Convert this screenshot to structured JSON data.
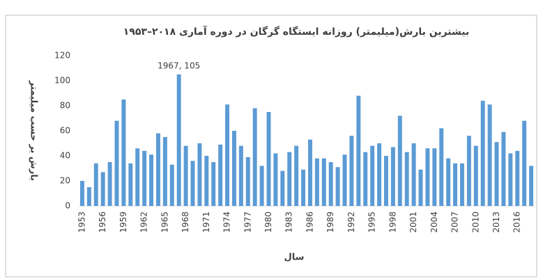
{
  "chart_data": {
    "type": "bar",
    "title": "بیشترین بارش(میلیمتر) روزانه ایستگاه گرگان در دوره آماری ۲۰۱۸–۱۹۵۳",
    "x_label": "سال",
    "y_label": "بارش بر حسب میلیمتر",
    "annotation": "1967, 105",
    "categories": [
      "1953",
      null,
      null,
      "1956",
      null,
      null,
      "1959",
      null,
      null,
      "1962",
      null,
      null,
      "1965",
      null,
      null,
      "1968",
      null,
      null,
      "1971",
      null,
      null,
      "1974",
      null,
      null,
      "1977",
      null,
      null,
      "1980",
      null,
      null,
      "1983",
      null,
      null,
      "1986",
      null,
      null,
      "1989",
      null,
      null,
      "1992",
      null,
      null,
      "1995",
      null,
      null,
      "1998",
      null,
      null,
      "2001",
      null,
      null,
      "2004",
      null,
      null,
      "2007",
      null,
      null,
      "2010",
      null,
      null,
      "2013",
      null,
      null,
      "2016",
      null,
      null
    ],
    "values": [
      20,
      15,
      34,
      27,
      35,
      68,
      85,
      34,
      46,
      44,
      41,
      58,
      55,
      33,
      105,
      48,
      36,
      50,
      40,
      35,
      49,
      81,
      60,
      48,
      39,
      78,
      32,
      75,
      42,
      28,
      43,
      48,
      29,
      53,
      38,
      38,
      35,
      31,
      41,
      56,
      88,
      43,
      48,
      50,
      40,
      47,
      72,
      43,
      50,
      29,
      46,
      46,
      62,
      38,
      34,
      34,
      56,
      48,
      84,
      81,
      51,
      59,
      42,
      44,
      68,
      32
    ],
    "color": "#5b9bd5",
    "ylim": [
      0,
      120
    ],
    "yticks": [
      0,
      20,
      40,
      60,
      80,
      100,
      120
    ],
    "grid": false
  }
}
